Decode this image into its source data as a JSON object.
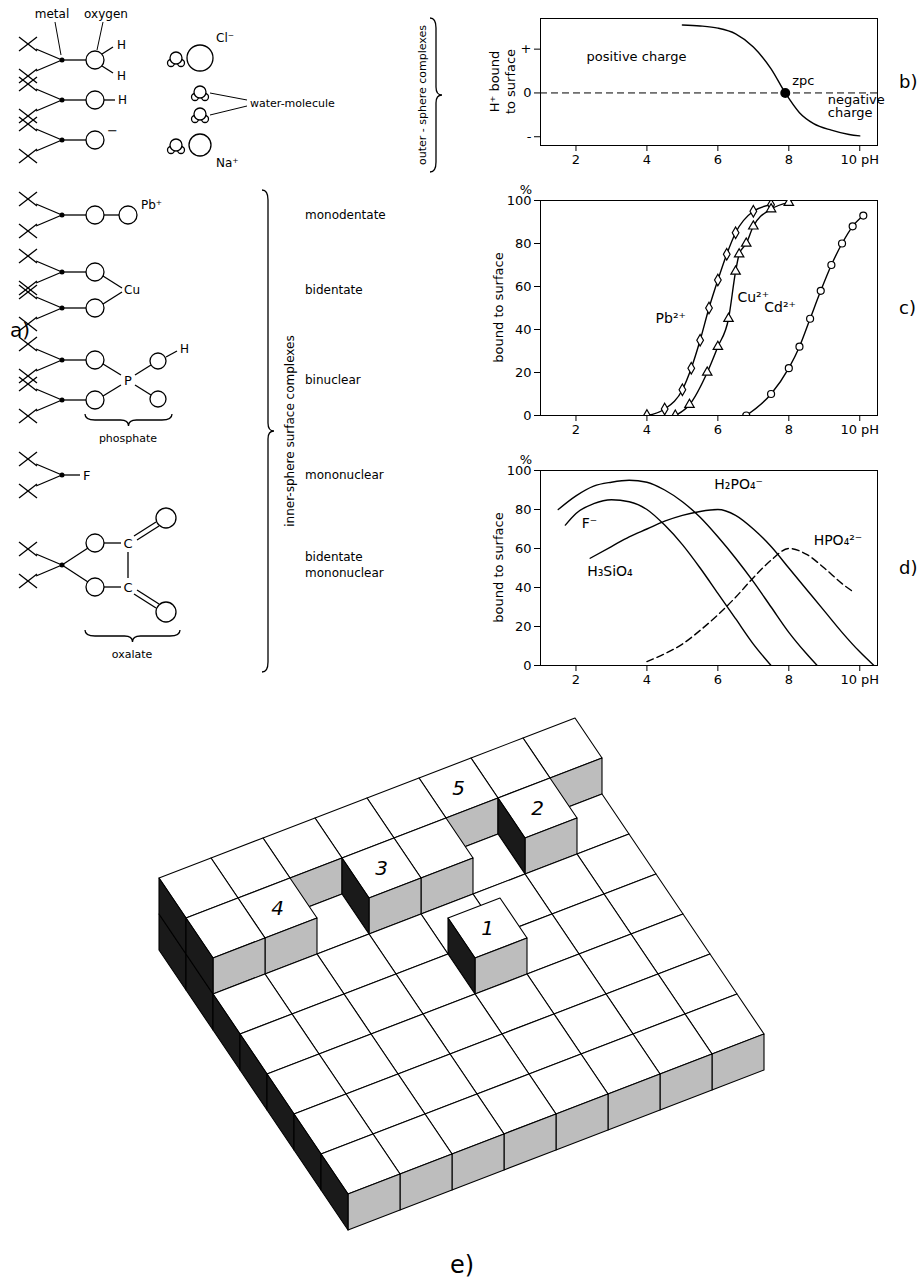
{
  "panel_a": {
    "panel_label": "a)",
    "surface_labels": {
      "metal": "metal",
      "oxygen": "oxygen"
    },
    "hydrogen": "H",
    "negative_sign": "−",
    "outer_sphere": {
      "group": "outer - sphere complexes",
      "anion": "Cl⁻",
      "water": "water-molecule",
      "cation": "Na⁺"
    },
    "inner_sphere": {
      "group": "inner-sphere surface complexes",
      "complexes": [
        {
          "label": "monodentate",
          "atom": "Pb⁺"
        },
        {
          "label": "bidentate",
          "atom": "Cu"
        },
        {
          "label": "binuclear",
          "atom": "P",
          "ligand": "phosphate"
        },
        {
          "label": "mononuclear",
          "atom": "F"
        },
        {
          "label": "bidentate mononuclear",
          "atom": "C",
          "ligand": "oxalate"
        }
      ]
    }
  },
  "chart_data": [
    {
      "panel_label": "b)",
      "type": "line",
      "color": "#000000",
      "ylabel": "H⁺ bound to surface",
      "x": [
        5,
        5.5,
        6,
        6.5,
        7,
        7.5,
        7.9,
        8.3,
        8.7,
        9.2,
        9.7,
        10
      ],
      "values": [
        1.55,
        1.53,
        1.48,
        1.35,
        1.05,
        0.55,
        0,
        -0.45,
        -0.7,
        -0.85,
        -0.95,
        -0.98
      ],
      "xlim": [
        1,
        10.5
      ],
      "xticks": [
        2,
        4,
        6,
        8,
        {
          "value": 10,
          "label": "10 pH"
        }
      ],
      "ylim": [
        -1.2,
        1.7
      ],
      "yticks": [
        {
          "value": 1,
          "label": "+"
        },
        0,
        {
          "value": -1,
          "label": "-"
        }
      ],
      "annotations": [
        {
          "text": "positive charge",
          "x": 2.3,
          "y": 0.95
        },
        {
          "text": "zpc",
          "x": 7.9,
          "y": 0,
          "marker": "circle",
          "line_style": "dashed"
        },
        {
          "text": "negative charge",
          "x": 9.1,
          "y": -0.05
        }
      ]
    },
    {
      "panel_label": "c)",
      "type": "line",
      "color": "#000000",
      "ylabel": "bound to surface",
      "y_unit": "%",
      "xlim": [
        1,
        10.5
      ],
      "xticks": [
        2,
        4,
        6,
        8,
        {
          "value": 10,
          "label": "10 pH"
        }
      ],
      "ylim": [
        0,
        100
      ],
      "yticks": [
        0,
        20,
        40,
        60,
        80,
        100
      ],
      "series": [
        {
          "name": "Pb²⁺",
          "marker": "diamond",
          "label_x": 5.1,
          "label_y": 45,
          "x": [
            4,
            4.5,
            5,
            5.25,
            5.5,
            5.75,
            6,
            6.25,
            6.5,
            7,
            7.5
          ],
          "values": [
            0,
            3,
            12,
            22,
            35,
            50,
            63,
            75,
            85,
            95,
            98
          ]
        },
        {
          "name": "Cu²⁺",
          "marker": "triangle",
          "label_x": 6.55,
          "label_y": 55,
          "x": [
            4.8,
            5.2,
            5.7,
            6,
            6.3,
            6.5,
            6.6,
            6.8,
            7,
            7.5,
            8
          ],
          "values": [
            0,
            5,
            20,
            32,
            45,
            67,
            75,
            80,
            88,
            96,
            99
          ]
        },
        {
          "name": "Cd²⁺",
          "marker": "circle",
          "label_x": 8.2,
          "label_y": 50,
          "x": [
            6.8,
            7.5,
            8,
            8.3,
            8.6,
            8.9,
            9.2,
            9.5,
            9.8,
            10.1
          ],
          "values": [
            0,
            10,
            22,
            32,
            45,
            58,
            70,
            80,
            88,
            93
          ]
        }
      ]
    },
    {
      "panel_label": "d)",
      "type": "line",
      "color": "#000000",
      "ylabel": "bound to surface",
      "y_unit": "%",
      "xlim": [
        1,
        10.5
      ],
      "xticks": [
        2,
        4,
        6,
        8,
        {
          "value": 10,
          "label": "10 pH"
        }
      ],
      "ylim": [
        0,
        100
      ],
      "yticks": [
        0,
        20,
        40,
        60,
        80,
        100
      ],
      "series": [
        {
          "name": "H₂PO₄⁻",
          "label_x": 5.9,
          "label_y": 93,
          "x": [
            1.5,
            2,
            2.5,
            3,
            3.5,
            4,
            4.5,
            5,
            5.5,
            6,
            6.5,
            7,
            7.5,
            8,
            8.5,
            8.8
          ],
          "values": [
            80,
            87,
            92,
            94,
            95,
            94,
            90,
            84,
            76,
            66,
            55,
            43,
            30,
            17,
            6,
            0
          ]
        },
        {
          "name": "F⁻",
          "label_x": 2.6,
          "label_y": 73,
          "x": [
            1.7,
            2,
            2.5,
            3,
            3.5,
            4,
            4.5,
            5,
            5.5,
            6,
            6.5,
            7,
            7.5
          ],
          "values": [
            72,
            78,
            83,
            85,
            84,
            80,
            72,
            62,
            50,
            37,
            24,
            11,
            0
          ]
        },
        {
          "name": "H₃SiO₄",
          "label_x": 3.6,
          "label_y": 48,
          "x": [
            2.4,
            3,
            3.5,
            4,
            4.5,
            5,
            5.5,
            6,
            6.5,
            7,
            7.5,
            8,
            8.5,
            9,
            9.5,
            10,
            10.4
          ],
          "values": [
            55,
            61,
            66,
            70,
            74,
            77,
            79,
            80,
            77,
            70,
            61,
            50,
            39,
            28,
            17,
            7,
            0
          ]
        },
        {
          "name": "HPO₄²⁻",
          "line_style": "dashed",
          "label_x": 8.7,
          "label_y": 64,
          "x": [
            4,
            4.5,
            5,
            5.5,
            6,
            6.5,
            7,
            7.5,
            8,
            8.5,
            9,
            9.5,
            9.8
          ],
          "values": [
            2,
            6,
            11,
            18,
            26,
            35,
            45,
            54,
            60,
            57,
            50,
            42,
            38
          ]
        }
      ]
    }
  ],
  "panel_e": {
    "panel_label": "e)",
    "site_labels": [
      "1",
      "2",
      "3",
      "4",
      "5"
    ]
  }
}
